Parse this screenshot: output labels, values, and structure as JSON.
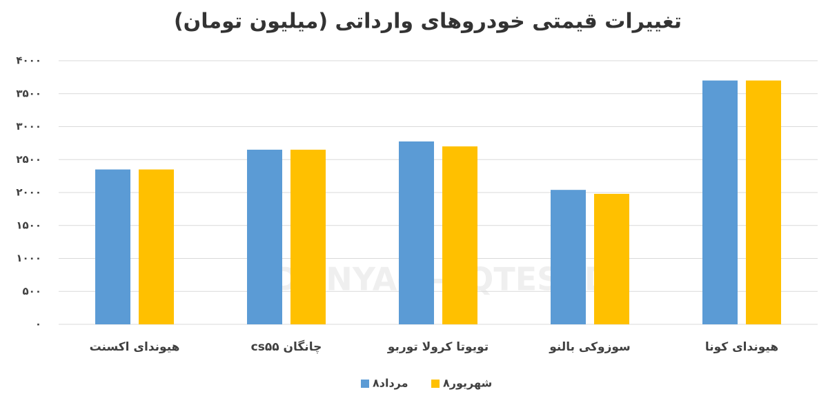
{
  "chart_data": {
    "type": "bar",
    "title": "تغییرات قیمتی خودروهای وارداتی (میلیون تومان)",
    "watermark": "DONYA-E-EQTESAD",
    "categories": [
      "هیوندای اکسنت",
      "چانگان cs۵۵",
      "تویوتا کرولا توربو",
      "سوزوکی بالنو",
      "هیوندای کونا"
    ],
    "series": [
      {
        "name": "۸مرداد",
        "color": "#5b9bd5",
        "values": [
          2350,
          2650,
          2775,
          2040,
          3700
        ]
      },
      {
        "name": "۸شهریور",
        "color": "#ffc000",
        "values": [
          2350,
          2650,
          2700,
          1980,
          3700
        ]
      }
    ],
    "ylim": [
      0,
      4000
    ],
    "yticks": [
      {
        "value": 0,
        "label": "۰"
      },
      {
        "value": 500,
        "label": "۵۰۰"
      },
      {
        "value": 1000,
        "label": "۱۰۰۰"
      },
      {
        "value": 1500,
        "label": "۱۵۰۰"
      },
      {
        "value": 2000,
        "label": "۲۰۰۰"
      },
      {
        "value": 2500,
        "label": "۲۵۰۰"
      },
      {
        "value": 3000,
        "label": "۳۰۰۰"
      },
      {
        "value": 3500,
        "label": "۳۵۰۰"
      },
      {
        "value": 4000,
        "label": "۴۰۰۰"
      }
    ],
    "grid": true,
    "legend": "bottom"
  }
}
